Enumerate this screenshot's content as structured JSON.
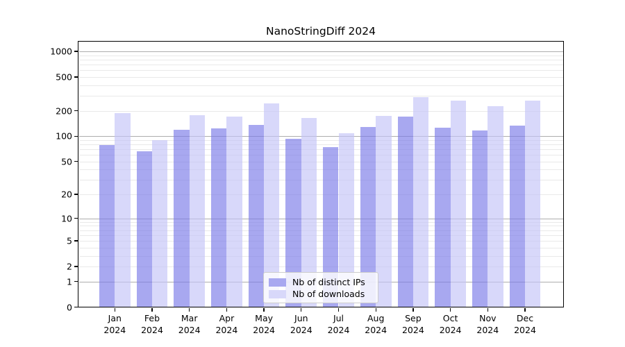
{
  "title": "NanoStringDiff 2024",
  "chart_data": {
    "type": "bar",
    "title": "NanoStringDiff 2024",
    "categories": [
      "Jan",
      "Feb",
      "Mar",
      "Apr",
      "May",
      "Jun",
      "Jul",
      "Aug",
      "Sep",
      "Oct",
      "Nov",
      "Dec"
    ],
    "year": "2024",
    "series": [
      {
        "name": "Nb of distinct IPs",
        "color": "#a8a8f0",
        "fill": "rgba(122,122,232,0.65)",
        "values": [
          78,
          66,
          120,
          125,
          137,
          93,
          75,
          129,
          172,
          126,
          117,
          133
        ]
      },
      {
        "name": "Nb of downloads",
        "color": "#d8d8fa",
        "fill": "rgba(195,195,248,0.65)",
        "values": [
          187,
          89,
          178,
          172,
          245,
          163,
          108,
          175,
          290,
          264,
          226,
          262
        ]
      }
    ],
    "yscale": "log1p",
    "yticks": [
      0,
      1,
      2,
      5,
      10,
      20,
      50,
      100,
      200,
      500,
      1000
    ],
    "ylim": [
      0,
      1000
    ],
    "grid": {
      "minor_color": "#e9e9e9",
      "major_color": "#adadad",
      "major_values": [
        1,
        10,
        100,
        1000
      ]
    },
    "legend_position": "lower-center-inside"
  },
  "legend": {
    "items": [
      {
        "label": "Nb of distinct IPs",
        "color": "#a8a8f0"
      },
      {
        "label": "Nb of downloads",
        "color": "#d8d8fa"
      }
    ]
  }
}
